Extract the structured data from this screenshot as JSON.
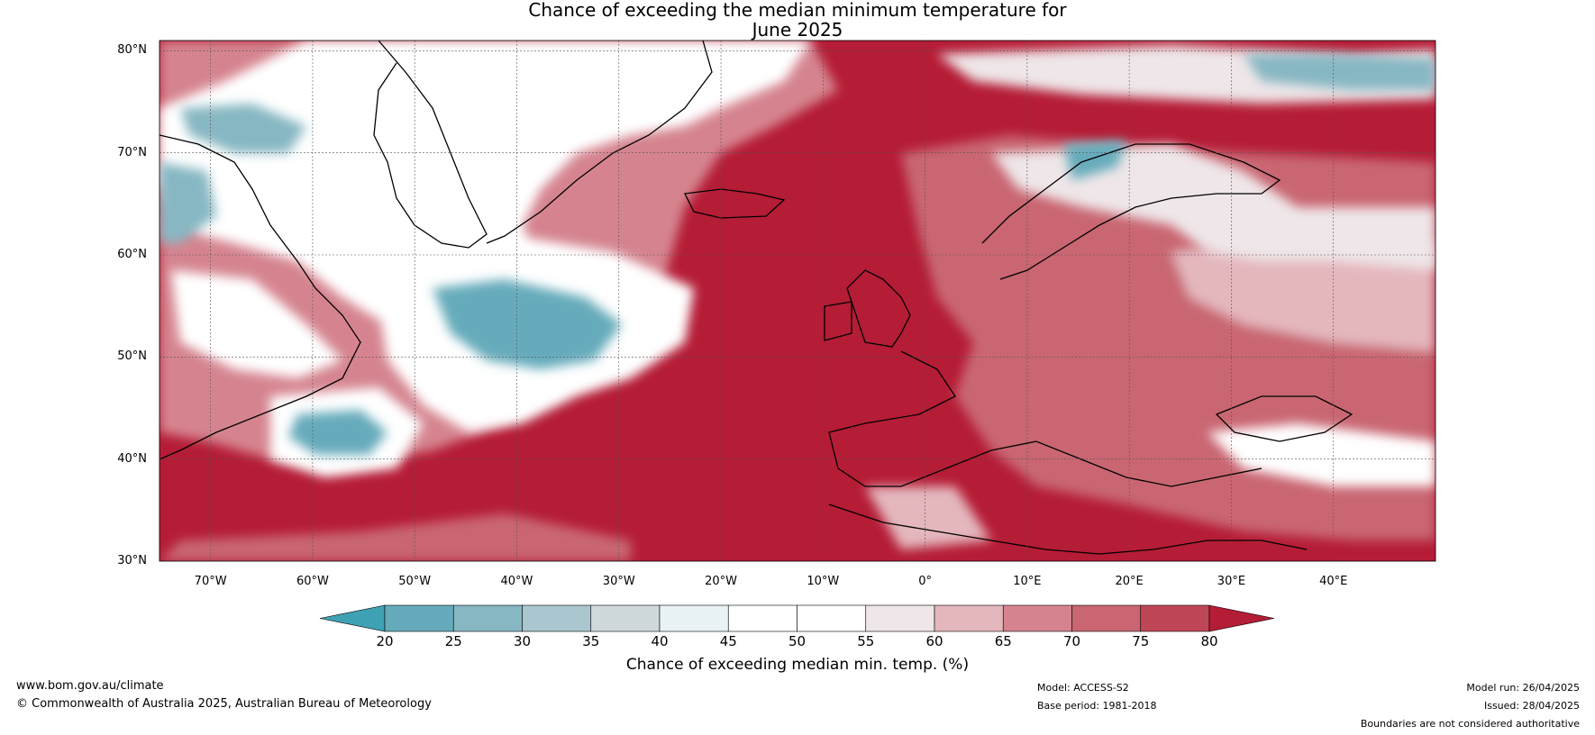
{
  "title": {
    "line1": "Chance of exceeding the median minimum temperature for",
    "line2": "June 2025"
  },
  "map": {
    "lat_labels": [
      "80°N",
      "70°N",
      "60°N",
      "50°N",
      "40°N",
      "30°N"
    ],
    "lon_labels": [
      "70°W",
      "60°W",
      "50°W",
      "40°W",
      "30°W",
      "20°W",
      "10°W",
      "0°",
      "10°E",
      "20°E",
      "30°E",
      "40°E"
    ],
    "extent": {
      "lon_min": -75,
      "lon_max": 50,
      "lat_min": 30,
      "lat_max": 81
    }
  },
  "colorbar": {
    "ticks": [
      "20",
      "25",
      "30",
      "35",
      "40",
      "45",
      "50",
      "55",
      "60",
      "65",
      "70",
      "75",
      "80"
    ],
    "label": "Chance of exceeding median min. temp. (%)",
    "colors": [
      "#3fa2b4",
      "#66abbb",
      "#87b7c3",
      "#aac7cf",
      "#cfd9dc",
      "#e9f2f4",
      "#ffffff",
      "#ffffff",
      "#eee6e8",
      "#e4b7bd",
      "#d5848f",
      "#c96672",
      "#bf4656",
      "#b51c36"
    ]
  },
  "footer": {
    "url": "www.bom.gov.au/climate",
    "copyright": "© Commonwealth of Australia 2025, Australian Bureau of Meteorology",
    "model": "Model: ACCESS-S2",
    "base_period": "Base period: 1981-2018",
    "model_run": "Model run: 26/04/2025",
    "issued": "Issued: 28/04/2025",
    "disclaimer": "Boundaries are not considered authoritative"
  }
}
